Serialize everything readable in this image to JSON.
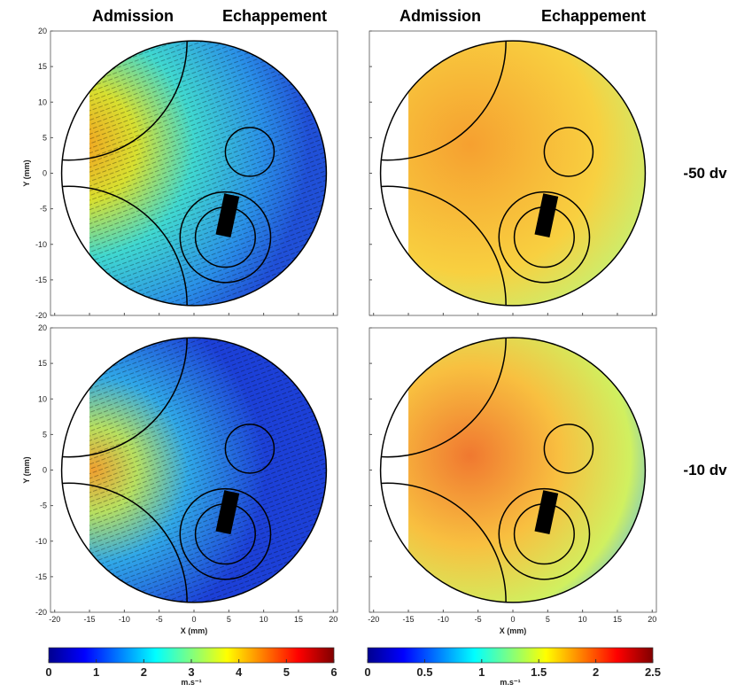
{
  "column_titles": [
    [
      "Admission",
      "Echappement"
    ],
    [
      "Admission",
      "Echappement"
    ]
  ],
  "row_labels": [
    "-50 dv",
    "-10 dv"
  ],
  "axes": {
    "xlabel": "X (mm)",
    "ylabel": "Y (mm)",
    "xlim": [
      -20.6,
      20.6
    ],
    "ylim": [
      -20,
      20
    ],
    "xticks": [
      -20,
      -15,
      -10,
      -5,
      0,
      5,
      10,
      15,
      20
    ],
    "yticks": [
      -20,
      -15,
      -10,
      -5,
      0,
      5,
      10,
      15,
      20
    ]
  },
  "colorbars": [
    {
      "unit": "m.s⁻¹",
      "lim": [
        0,
        6
      ],
      "ticks": [
        0,
        1,
        2,
        3,
        4,
        5,
        6
      ]
    },
    {
      "unit": "m.s⁻¹",
      "lim": [
        0,
        2.5
      ],
      "ticks": [
        0,
        0.5,
        1,
        1.5,
        2,
        2.5
      ]
    }
  ]
}
